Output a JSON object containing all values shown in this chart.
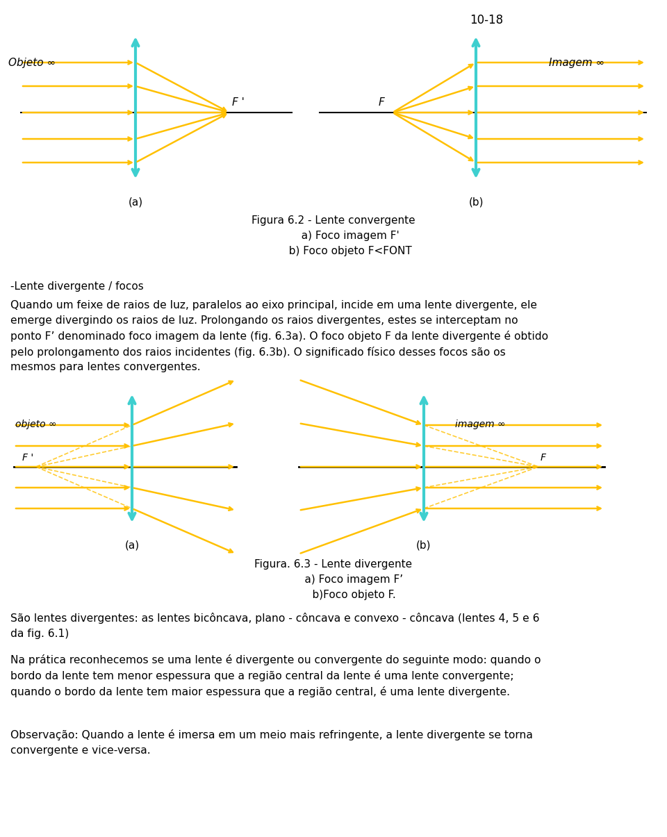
{
  "page_number": "10-18",
  "bg_color": "#ffffff",
  "lens_color": "#3ECFCF",
  "ray_color": "#FFC000",
  "dashed_color": "#FFC000",
  "axis_color": "#000000",
  "text_color": "#000000",
  "fig1_caption": "Figura 6.2 - Lente convergente\n          a) Foco imagem F'\n          b) Foco objeto F<FONT",
  "fig2_caption": "Figura. 6.3 - Lente divergente\n            a) Foco imagem Fʼ\n            b)Foco objeto F.",
  "paragraph1": "-Lente divergente / focos",
  "paragraph2": "Quando um feixe de raios de luz, paralelos ao eixo principal, incide em uma lente divergente, ele\nemerge divergindo os raios de luz. Prolongando os raios divergentes, estes se interceptam no\nponto Fʼ denominado foco imagem da lente (fig. 6.3a). O foco objeto F da lente divergente é obtido\npelo prolongamento dos raios incidentes (fig. 6.3b). O significado físico desses focos são os\nmesmos para lentes convergentes.",
  "paragraph3": "São lentes divergentes: as lentes bicôncava, plano - côncava e convexo - côncava (lentes 4, 5 e 6\nda fig. 6.1)",
  "paragraph4": "Na prática reconhecemos se uma lente é divergente ou convergente do seguinte modo: quando o\nbordo da lente tem menor espessura que a região central da lente é uma lente convergente;\nquando o bordo da lente tem maior espessura que a região central, é uma lente divergente.",
  "paragraph5": "Observação: Quando a lente é imersa em um meio mais refringente, a lente divergente se torna\nconvergente e vice-versa."
}
